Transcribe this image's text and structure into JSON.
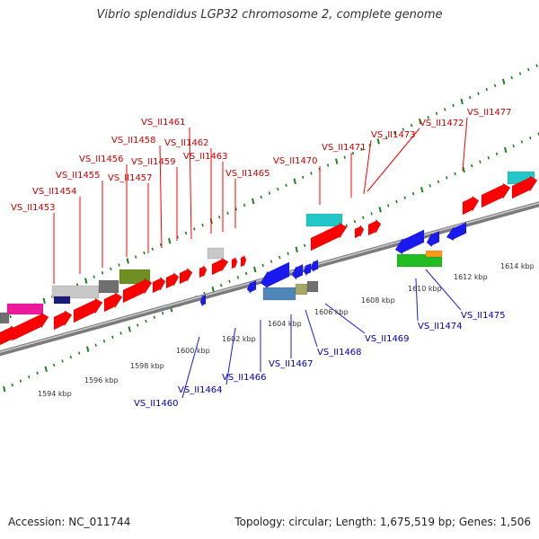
{
  "title": "Vibrio splendidus LGP32 chromosome 2, complete genome",
  "footer": {
    "accession": "Accession: NC_011744",
    "summary": "Topology: circular; Length: 1,675,519 bp; Genes: 1,506"
  },
  "scale_labels": [
    "1594 kbp",
    "1596 kbp",
    "1598 kbp",
    "1600 kbp",
    "1602 kbp",
    "1604 kbp",
    "1606 kbp",
    "1608 kbp",
    "1610 kbp",
    "1612 kbp",
    "1614 kbp"
  ],
  "upper_genes": [
    "VS_II1453",
    "VS_II1454",
    "VS_II1455",
    "VS_II1456",
    "VS_II1457",
    "VS_II1458",
    "VS_II1459",
    "VS_II1461",
    "VS_II1462",
    "VS_II1463",
    "VS_II1465",
    "VS_II1470",
    "VS_II1471",
    "VS_II1473",
    "VS_II1472",
    "VS_II1477"
  ],
  "lower_genes": [
    "VS_II1460",
    "VS_II1464",
    "VS_II1466",
    "VS_II1467",
    "VS_II1468",
    "VS_II1469",
    "VS_II1474",
    "VS_II1475"
  ],
  "colors": {
    "upper_label": "#cc0000",
    "lower_label": "#0000bb",
    "red": "#ff0000",
    "blue": "#1a1aee",
    "cyan": "#22c8c8",
    "magenta": "#ee1a9e",
    "olive": "#6f8f22",
    "green": "#22bb22",
    "orange": "#ff9a1a",
    "steelblue": "#4f86b8",
    "khaki": "#a8a866",
    "lightgray": "#c8c8c8",
    "darkgray": "#707070",
    "navy": "#1a1a77",
    "tick": "#1f7f1f",
    "backbone": "#9a9a9a"
  }
}
